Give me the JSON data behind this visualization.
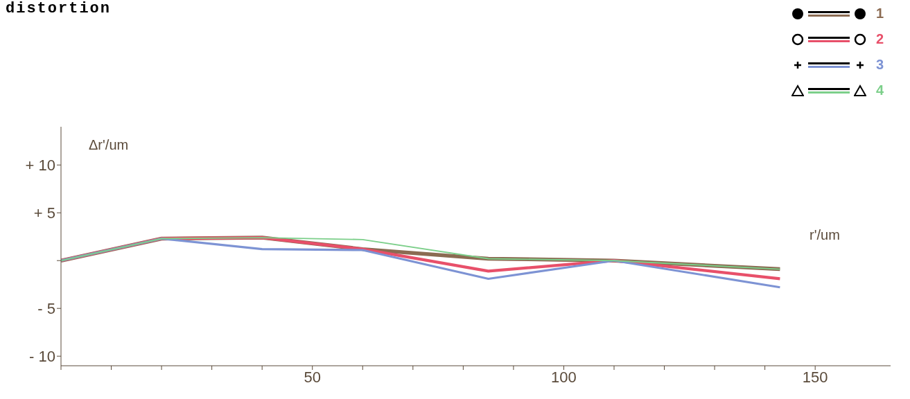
{
  "chart_data": {
    "type": "line",
    "title": "distortion",
    "ylabel": "Δr'/um",
    "xlabel": "r'/um",
    "x": [
      0,
      20,
      40,
      60,
      85,
      110,
      143
    ],
    "series": [
      {
        "name": "1",
        "color": "#8b6b52",
        "values": [
          0,
          2.3,
          2.4,
          1.2,
          0.2,
          0,
          -0.9
        ]
      },
      {
        "name": "2",
        "color": "#e8506a",
        "values": [
          0,
          2.3,
          2.4,
          1.2,
          -1.1,
          0,
          -1.9
        ]
      },
      {
        "name": "3",
        "color": "#7d93d4",
        "values": [
          0,
          2.3,
          1.2,
          1.1,
          -1.9,
          0,
          -2.8
        ]
      },
      {
        "name": "4",
        "color": "#7ccf8a",
        "values": [
          0,
          2.3,
          2.4,
          2.2,
          0.2,
          0,
          -0.9
        ]
      }
    ],
    "xlim": [
      0,
      165
    ],
    "xticks": [
      {
        "value": 0,
        "label": null
      },
      {
        "value": 10,
        "label": null
      },
      {
        "value": 20,
        "label": null
      },
      {
        "value": 30,
        "label": null
      },
      {
        "value": 40,
        "label": null
      },
      50,
      {
        "value": 60,
        "label": null
      },
      {
        "value": 70,
        "label": null
      },
      {
        "value": 80,
        "label": null
      },
      {
        "value": 90,
        "label": null
      },
      100,
      {
        "value": 110,
        "label": null
      },
      {
        "value": 120,
        "label": null
      },
      {
        "value": 130,
        "label": null
      },
      {
        "value": 140,
        "label": null
      },
      150
    ],
    "ylim": [
      -11,
      14
    ],
    "yticks": [
      {
        "value": -10,
        "label": "- 10"
      },
      {
        "value": -5,
        "label": "- 5"
      },
      {
        "value": 0,
        "label": null
      },
      {
        "value": 5,
        "label": "+ 5"
      },
      {
        "value": 10,
        "label": "+ 10"
      }
    ],
    "legend": "top right",
    "grid": false
  }
}
